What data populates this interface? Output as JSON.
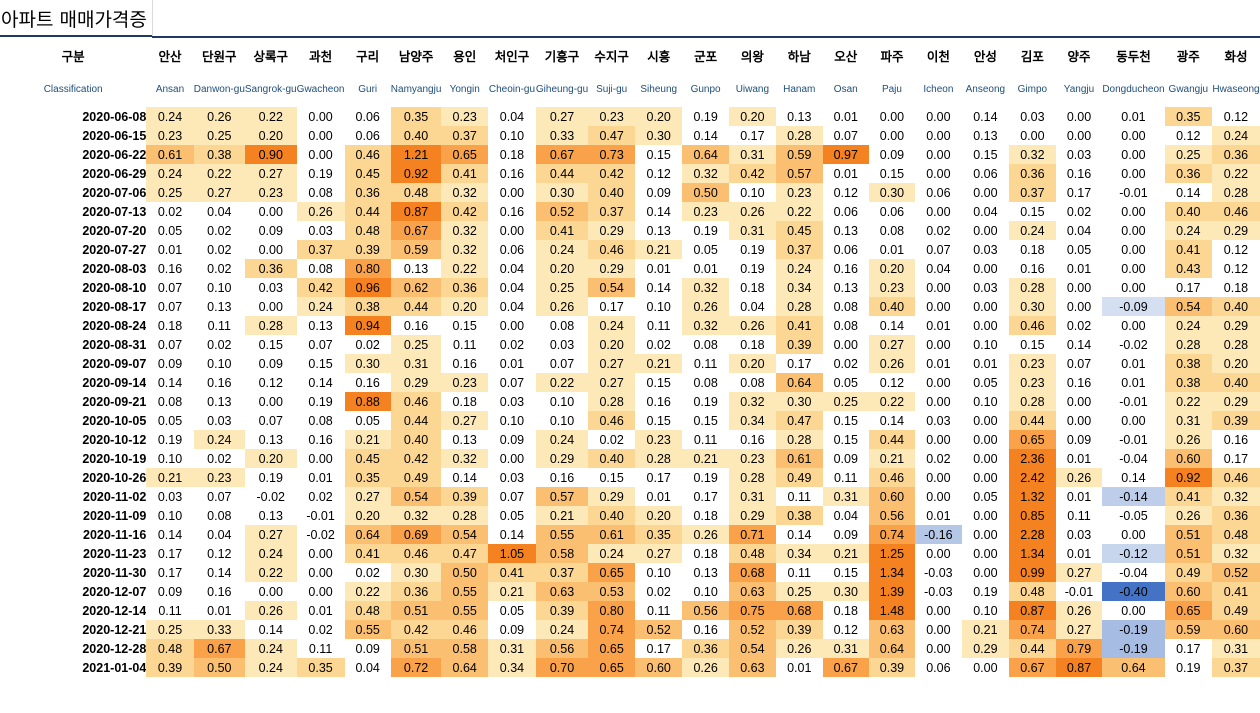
{
  "title": "아파트 매매가격증",
  "header": {
    "label_ko": "구분",
    "label_en": "Classification",
    "columns": [
      {
        "ko": "안산",
        "en": "Ansan"
      },
      {
        "ko": "단원구",
        "en": "Danwon-gu"
      },
      {
        "ko": "상록구",
        "en": "Sangrok-gu"
      },
      {
        "ko": "과천",
        "en": "Gwacheon"
      },
      {
        "ko": "구리",
        "en": "Guri"
      },
      {
        "ko": "남양주",
        "en": "Namyangju"
      },
      {
        "ko": "용인",
        "en": "Yongin"
      },
      {
        "ko": "처인구",
        "en": "Cheoin-gu"
      },
      {
        "ko": "기흥구",
        "en": "Giheung-gu"
      },
      {
        "ko": "수지구",
        "en": "Suji-gu"
      },
      {
        "ko": "시흥",
        "en": "Siheung"
      },
      {
        "ko": "군포",
        "en": "Gunpo"
      },
      {
        "ko": "의왕",
        "en": "Uiwang"
      },
      {
        "ko": "하남",
        "en": "Hanam"
      },
      {
        "ko": "오산",
        "en": "Osan"
      },
      {
        "ko": "파주",
        "en": "Paju"
      },
      {
        "ko": "이천",
        "en": "Icheon"
      },
      {
        "ko": "안성",
        "en": "Anseong"
      },
      {
        "ko": "김포",
        "en": "Gimpo"
      },
      {
        "ko": "양주",
        "en": "Yangju"
      },
      {
        "ko": "동두천",
        "en": "Dongducheon"
      },
      {
        "ko": "광주",
        "en": "Gwangju"
      },
      {
        "ko": "화성",
        "en": "Hwaseong"
      }
    ]
  },
  "colors": {
    "header_line": "#1f3864",
    "en_text": "#1f4e79",
    "high": "#f58220",
    "low": "#ffffff",
    "negative": "#4472c4"
  },
  "rows": [
    {
      "date": "2020-06-08",
      "values": [
        "0.24",
        "0.26",
        "0.22",
        "0.00",
        "0.06",
        "0.35",
        "0.23",
        "0.04",
        "0.27",
        "0.23",
        "0.20",
        "0.19",
        "0.20",
        "0.13",
        "0.01",
        "0.00",
        "0.00",
        "0.14",
        "0.03",
        "0.00",
        "0.01",
        "0.35",
        "0.12"
      ]
    },
    {
      "date": "2020-06-15",
      "values": [
        "0.23",
        "0.25",
        "0.20",
        "0.00",
        "0.06",
        "0.40",
        "0.37",
        "0.10",
        "0.33",
        "0.47",
        "0.30",
        "0.14",
        "0.17",
        "0.28",
        "0.07",
        "0.00",
        "0.00",
        "0.13",
        "0.00",
        "0.00",
        "0.00",
        "0.12",
        "0.24"
      ]
    },
    {
      "date": "2020-06-22",
      "values": [
        "0.61",
        "0.38",
        "0.90",
        "0.00",
        "0.46",
        "1.21",
        "0.65",
        "0.18",
        "0.67",
        "0.73",
        "0.15",
        "0.64",
        "0.31",
        "0.59",
        "0.97",
        "0.09",
        "0.00",
        "0.15",
        "0.32",
        "0.03",
        "0.00",
        "0.25",
        "0.36"
      ]
    },
    {
      "date": "2020-06-29",
      "values": [
        "0.24",
        "0.22",
        "0.27",
        "0.19",
        "0.45",
        "0.92",
        "0.41",
        "0.16",
        "0.44",
        "0.42",
        "0.12",
        "0.32",
        "0.42",
        "0.57",
        "0.01",
        "0.15",
        "0.00",
        "0.06",
        "0.36",
        "0.16",
        "0.00",
        "0.36",
        "0.22"
      ]
    },
    {
      "date": "2020-07-06",
      "values": [
        "0.25",
        "0.27",
        "0.23",
        "0.08",
        "0.36",
        "0.48",
        "0.32",
        "0.00",
        "0.30",
        "0.40",
        "0.09",
        "0.50",
        "0.10",
        "0.23",
        "0.12",
        "0.30",
        "0.06",
        "0.00",
        "0.37",
        "0.17",
        "-0.01",
        "0.14",
        "0.28"
      ]
    },
    {
      "date": "2020-07-13",
      "values": [
        "0.02",
        "0.04",
        "0.00",
        "0.26",
        "0.44",
        "0.87",
        "0.42",
        "0.16",
        "0.52",
        "0.37",
        "0.14",
        "0.23",
        "0.26",
        "0.22",
        "0.06",
        "0.06",
        "0.00",
        "0.04",
        "0.15",
        "0.02",
        "0.00",
        "0.40",
        "0.46"
      ]
    },
    {
      "date": "2020-07-20",
      "values": [
        "0.05",
        "0.02",
        "0.09",
        "0.03",
        "0.48",
        "0.67",
        "0.32",
        "0.00",
        "0.41",
        "0.29",
        "0.13",
        "0.19",
        "0.31",
        "0.45",
        "0.13",
        "0.08",
        "0.02",
        "0.00",
        "0.24",
        "0.04",
        "0.00",
        "0.24",
        "0.29"
      ]
    },
    {
      "date": "2020-07-27",
      "values": [
        "0.01",
        "0.02",
        "0.00",
        "0.37",
        "0.39",
        "0.59",
        "0.32",
        "0.06",
        "0.24",
        "0.46",
        "0.21",
        "0.05",
        "0.19",
        "0.37",
        "0.06",
        "0.01",
        "0.07",
        "0.03",
        "0.18",
        "0.05",
        "0.00",
        "0.41",
        "0.12"
      ]
    },
    {
      "date": "2020-08-03",
      "values": [
        "0.16",
        "0.02",
        "0.36",
        "0.08",
        "0.80",
        "0.13",
        "0.22",
        "0.04",
        "0.20",
        "0.29",
        "0.01",
        "0.01",
        "0.19",
        "0.24",
        "0.16",
        "0.20",
        "0.04",
        "0.00",
        "0.16",
        "0.01",
        "0.00",
        "0.43",
        "0.12"
      ]
    },
    {
      "date": "2020-08-10",
      "values": [
        "0.07",
        "0.10",
        "0.03",
        "0.42",
        "0.96",
        "0.62",
        "0.36",
        "0.04",
        "0.25",
        "0.54",
        "0.14",
        "0.32",
        "0.18",
        "0.34",
        "0.13",
        "0.23",
        "0.00",
        "0.03",
        "0.28",
        "0.00",
        "0.00",
        "0.17",
        "0.18"
      ]
    },
    {
      "date": "2020-08-17",
      "values": [
        "0.07",
        "0.13",
        "0.00",
        "0.24",
        "0.38",
        "0.44",
        "0.20",
        "0.04",
        "0.26",
        "0.17",
        "0.10",
        "0.26",
        "0.04",
        "0.28",
        "0.08",
        "0.40",
        "0.00",
        "0.00",
        "0.30",
        "0.00",
        "-0.09",
        "0.54",
        "0.40"
      ]
    },
    {
      "date": "2020-08-24",
      "values": [
        "0.18",
        "0.11",
        "0.28",
        "0.13",
        "0.94",
        "0.16",
        "0.15",
        "0.00",
        "0.08",
        "0.24",
        "0.11",
        "0.32",
        "0.26",
        "0.41",
        "0.08",
        "0.14",
        "0.01",
        "0.00",
        "0.46",
        "0.02",
        "0.00",
        "0.24",
        "0.29"
      ]
    },
    {
      "date": "2020-08-31",
      "values": [
        "0.07",
        "0.02",
        "0.15",
        "0.07",
        "0.02",
        "0.25",
        "0.11",
        "0.02",
        "0.03",
        "0.20",
        "0.02",
        "0.08",
        "0.18",
        "0.39",
        "0.00",
        "0.27",
        "0.00",
        "0.10",
        "0.15",
        "0.14",
        "-0.02",
        "0.28",
        "0.28"
      ]
    },
    {
      "date": "2020-09-07",
      "values": [
        "0.09",
        "0.10",
        "0.09",
        "0.15",
        "0.30",
        "0.31",
        "0.16",
        "0.01",
        "0.07",
        "0.27",
        "0.21",
        "0.11",
        "0.20",
        "0.17",
        "0.02",
        "0.26",
        "0.01",
        "0.01",
        "0.23",
        "0.07",
        "0.01",
        "0.38",
        "0.20"
      ]
    },
    {
      "date": "2020-09-14",
      "values": [
        "0.14",
        "0.16",
        "0.12",
        "0.14",
        "0.16",
        "0.29",
        "0.23",
        "0.07",
        "0.22",
        "0.27",
        "0.15",
        "0.08",
        "0.08",
        "0.64",
        "0.05",
        "0.12",
        "0.00",
        "0.05",
        "0.23",
        "0.16",
        "0.01",
        "0.38",
        "0.40"
      ]
    },
    {
      "date": "2020-09-21",
      "values": [
        "0.08",
        "0.13",
        "0.00",
        "0.19",
        "0.88",
        "0.46",
        "0.18",
        "0.03",
        "0.10",
        "0.28",
        "0.16",
        "0.19",
        "0.32",
        "0.30",
        "0.25",
        "0.22",
        "0.00",
        "0.10",
        "0.28",
        "0.00",
        "-0.01",
        "0.22",
        "0.29"
      ]
    },
    {
      "date": "2020-10-05",
      "values": [
        "0.05",
        "0.03",
        "0.07",
        "0.08",
        "0.05",
        "0.44",
        "0.27",
        "0.10",
        "0.10",
        "0.46",
        "0.15",
        "0.15",
        "0.34",
        "0.47",
        "0.15",
        "0.14",
        "0.03",
        "0.00",
        "0.44",
        "0.00",
        "0.00",
        "0.31",
        "0.39"
      ]
    },
    {
      "date": "2020-10-12",
      "values": [
        "0.19",
        "0.24",
        "0.13",
        "0.16",
        "0.21",
        "0.40",
        "0.13",
        "0.09",
        "0.24",
        "0.02",
        "0.23",
        "0.11",
        "0.16",
        "0.28",
        "0.15",
        "0.44",
        "0.00",
        "0.00",
        "0.65",
        "0.09",
        "-0.01",
        "0.26",
        "0.16"
      ]
    },
    {
      "date": "2020-10-19",
      "values": [
        "0.10",
        "0.02",
        "0.20",
        "0.00",
        "0.45",
        "0.42",
        "0.32",
        "0.00",
        "0.29",
        "0.40",
        "0.28",
        "0.21",
        "0.23",
        "0.61",
        "0.09",
        "0.21",
        "0.02",
        "0.00",
        "2.36",
        "0.01",
        "-0.04",
        "0.60",
        "0.17"
      ]
    },
    {
      "date": "2020-10-26",
      "values": [
        "0.21",
        "0.23",
        "0.19",
        "0.01",
        "0.35",
        "0.49",
        "0.14",
        "0.03",
        "0.16",
        "0.15",
        "0.17",
        "0.19",
        "0.28",
        "0.49",
        "0.11",
        "0.46",
        "0.00",
        "0.00",
        "2.42",
        "0.26",
        "0.14",
        "0.92",
        "0.46"
      ]
    },
    {
      "date": "2020-11-02",
      "values": [
        "0.03",
        "0.07",
        "-0.02",
        "0.02",
        "0.27",
        "0.54",
        "0.39",
        "0.07",
        "0.57",
        "0.29",
        "0.01",
        "0.17",
        "0.31",
        "0.11",
        "0.31",
        "0.60",
        "0.00",
        "0.05",
        "1.32",
        "0.01",
        "-0.14",
        "0.41",
        "0.32"
      ]
    },
    {
      "date": "2020-11-09",
      "values": [
        "0.10",
        "0.08",
        "0.13",
        "-0.01",
        "0.20",
        "0.32",
        "0.28",
        "0.05",
        "0.21",
        "0.40",
        "0.20",
        "0.18",
        "0.29",
        "0.38",
        "0.04",
        "0.56",
        "0.01",
        "0.00",
        "0.85",
        "0.11",
        "-0.05",
        "0.26",
        "0.36"
      ]
    },
    {
      "date": "2020-11-16",
      "values": [
        "0.14",
        "0.04",
        "0.27",
        "-0.02",
        "0.64",
        "0.69",
        "0.54",
        "0.14",
        "0.55",
        "0.61",
        "0.35",
        "0.26",
        "0.71",
        "0.14",
        "0.09",
        "0.74",
        "-0.16",
        "0.00",
        "2.28",
        "0.03",
        "0.00",
        "0.51",
        "0.48"
      ]
    },
    {
      "date": "2020-11-23",
      "values": [
        "0.17",
        "0.12",
        "0.24",
        "0.00",
        "0.41",
        "0.46",
        "0.47",
        "1.05",
        "0.58",
        "0.24",
        "0.27",
        "0.18",
        "0.48",
        "0.34",
        "0.21",
        "1.25",
        "0.00",
        "0.00",
        "1.34",
        "0.01",
        "-0.12",
        "0.51",
        "0.32"
      ]
    },
    {
      "date": "2020-11-30",
      "values": [
        "0.17",
        "0.14",
        "0.22",
        "0.00",
        "0.02",
        "0.30",
        "0.50",
        "0.41",
        "0.37",
        "0.65",
        "0.10",
        "0.13",
        "0.68",
        "0.11",
        "0.15",
        "1.34",
        "-0.03",
        "0.00",
        "0.99",
        "0.27",
        "-0.04",
        "0.49",
        "0.52"
      ]
    },
    {
      "date": "2020-12-07",
      "values": [
        "0.09",
        "0.16",
        "0.00",
        "0.00",
        "0.22",
        "0.36",
        "0.55",
        "0.21",
        "0.63",
        "0.53",
        "0.02",
        "0.10",
        "0.63",
        "0.25",
        "0.30",
        "1.39",
        "-0.03",
        "0.19",
        "0.48",
        "-0.01",
        "-0.40",
        "0.60",
        "0.41"
      ]
    },
    {
      "date": "2020-12-14",
      "values": [
        "0.11",
        "0.01",
        "0.26",
        "0.01",
        "0.48",
        "0.51",
        "0.55",
        "0.05",
        "0.39",
        "0.80",
        "0.11",
        "0.56",
        "0.75",
        "0.68",
        "0.18",
        "1.48",
        "0.00",
        "0.10",
        "0.87",
        "0.26",
        "0.00",
        "0.65",
        "0.49"
      ]
    },
    {
      "date": "2020-12-21",
      "values": [
        "0.25",
        "0.33",
        "0.14",
        "0.02",
        "0.55",
        "0.42",
        "0.46",
        "0.09",
        "0.24",
        "0.74",
        "0.52",
        "0.16",
        "0.52",
        "0.39",
        "0.12",
        "0.63",
        "0.00",
        "0.21",
        "0.74",
        "0.27",
        "-0.19",
        "0.59",
        "0.60"
      ]
    },
    {
      "date": "2020-12-28",
      "values": [
        "0.48",
        "0.67",
        "0.24",
        "0.11",
        "0.09",
        "0.51",
        "0.58",
        "0.31",
        "0.56",
        "0.65",
        "0.17",
        "0.36",
        "0.54",
        "0.26",
        "0.31",
        "0.64",
        "0.00",
        "0.29",
        "0.44",
        "0.79",
        "-0.19",
        "0.17",
        "0.31"
      ]
    },
    {
      "date": "2021-01-04",
      "values": [
        "0.39",
        "0.50",
        "0.24",
        "0.35",
        "0.04",
        "0.72",
        "0.64",
        "0.34",
        "0.70",
        "0.65",
        "0.60",
        "0.26",
        "0.63",
        "0.01",
        "0.67",
        "0.39",
        "0.06",
        "0.00",
        "0.67",
        "0.87",
        "0.64",
        "0.19",
        "0.37"
      ]
    }
  ]
}
